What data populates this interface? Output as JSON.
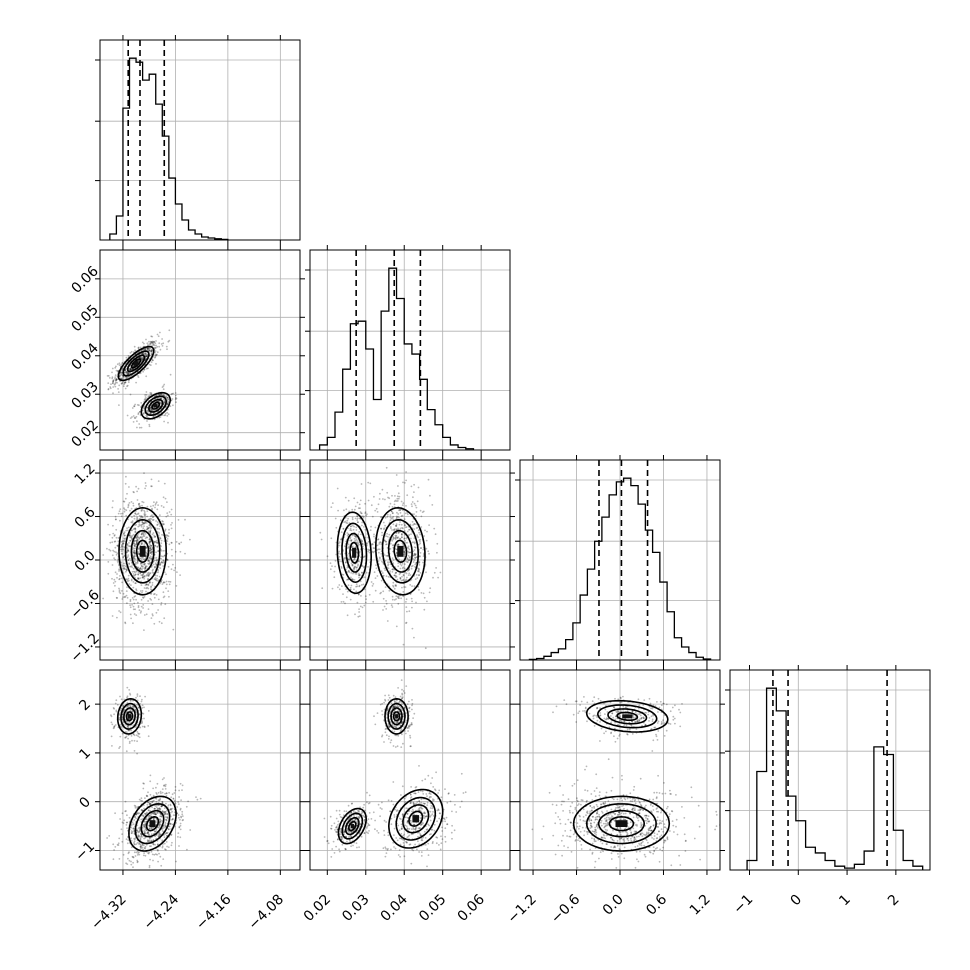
{
  "chart_data": {
    "type": "corner",
    "parameters": 4,
    "grid": true,
    "axes": {
      "x1": {
        "lim": [
          -4.355,
          -4.05
        ],
        "ticks": [
          -4.32,
          -4.24,
          -4.16,
          -4.08
        ],
        "tick_labels": [
          "−4.32",
          "−4.24",
          "−4.16",
          "−4.08"
        ]
      },
      "x2": {
        "lim": [
          0.0155,
          0.0675
        ],
        "ticks": [
          0.02,
          0.03,
          0.04,
          0.05,
          0.06
        ],
        "tick_labels": [
          "0.02",
          "0.03",
          "0.04",
          "0.05",
          "0.06"
        ]
      },
      "x3": {
        "lim": [
          -1.38,
          1.38
        ],
        "ticks": [
          -1.2,
          -0.6,
          0.0,
          0.6,
          1.2
        ],
        "tick_labels": [
          "−1.2",
          "−0.6",
          "0.0",
          "0.6",
          "1.2"
        ]
      },
      "x4": {
        "lim": [
          -1.4,
          2.7
        ],
        "ticks": [
          -1,
          0,
          1,
          2
        ],
        "tick_labels": [
          "−1",
          "0",
          "1",
          "2"
        ]
      }
    },
    "histograms": [
      {
        "param": "x1",
        "edges": [
          -4.34,
          -4.33,
          -4.32,
          -4.31,
          -4.3,
          -4.29,
          -4.28,
          -4.27,
          -4.26,
          -4.25,
          -4.24,
          -4.23,
          -4.22,
          -4.21,
          -4.2,
          -4.19,
          -4.18,
          -4.17,
          -4.16
        ],
        "counts": [
          3,
          12,
          66,
          91,
          89,
          80,
          83,
          68,
          52,
          31,
          18,
          10,
          5,
          3,
          1.5,
          1,
          0.6,
          0.3
        ],
        "quantiles": [
          -4.312,
          -4.294,
          -4.257
        ]
      },
      {
        "param": "x2",
        "edges": [
          0.018,
          0.02,
          0.022,
          0.024,
          0.026,
          0.028,
          0.03,
          0.032,
          0.034,
          0.036,
          0.038,
          0.04,
          0.042,
          0.044,
          0.046,
          0.048,
          0.05,
          0.052,
          0.054,
          0.056,
          0.058
        ],
        "counts": [
          2,
          5,
          15,
          32,
          50,
          51,
          40,
          20,
          55,
          72,
          60,
          42,
          38,
          28,
          16,
          10,
          5,
          2,
          1,
          0.5
        ],
        "quantiles": [
          0.0275,
          0.0374,
          0.0442
        ]
      },
      {
        "param": "x3",
        "edges": [
          -1.25,
          -1.15,
          -1.05,
          -0.95,
          -0.85,
          -0.75,
          -0.65,
          -0.55,
          -0.45,
          -0.35,
          -0.25,
          -0.15,
          -0.05,
          0.05,
          0.15,
          0.25,
          0.35,
          0.45,
          0.55,
          0.65,
          0.75,
          0.85,
          0.95,
          1.05,
          1.15,
          1.25
        ],
        "counts": [
          0.3,
          0.8,
          2,
          4,
          6,
          11,
          20,
          35,
          49,
          64,
          77,
          89,
          96,
          98,
          94,
          84,
          70,
          58,
          42,
          26,
          12,
          7,
          4,
          1.5,
          0.5
        ],
        "quantiles": [
          -0.29,
          0.02,
          0.38
        ]
      },
      {
        "param": "x4",
        "edges": [
          -1.05,
          -0.85,
          -0.65,
          -0.45,
          -0.25,
          -0.05,
          0.15,
          0.35,
          0.55,
          0.75,
          0.95,
          1.15,
          1.35,
          1.55,
          1.75,
          1.95,
          2.15,
          2.35,
          2.55
        ],
        "counts": [
          5,
          52,
          96,
          84,
          39,
          26,
          12,
          9,
          5,
          2,
          1,
          3,
          10,
          65,
          61,
          21,
          5,
          2
        ],
        "quantiles": [
          -0.52,
          -0.21,
          1.82
        ]
      }
    ],
    "pairs": [
      {
        "x": "x1",
        "y": "x2",
        "modes": [
          {
            "center": [
              -4.3,
              0.038
            ],
            "spread": [
              0.0135,
              0.0022
            ],
            "rho": 0.75,
            "weight": 0.62
          },
          {
            "center": [
              -4.27,
              0.027
            ],
            "spread": [
              0.011,
              0.0017
            ],
            "rho": 0.45,
            "weight": 0.38
          }
        ]
      },
      {
        "x": "x1",
        "y": "x3",
        "modes": [
          {
            "center": [
              -4.29,
              0.12
            ],
            "spread": [
              0.018,
              0.3
            ],
            "rho": 0.0,
            "weight": 1.0
          }
        ]
      },
      {
        "x": "x2",
        "y": "x3",
        "modes": [
          {
            "center": [
              0.027,
              0.1
            ],
            "spread": [
              0.0022,
              0.28
            ],
            "rho": -0.1,
            "weight": 0.38
          },
          {
            "center": [
              0.039,
              0.12
            ],
            "spread": [
              0.0032,
              0.3
            ],
            "rho": -0.1,
            "weight": 0.62
          }
        ]
      },
      {
        "x": "x1",
        "y": "x4",
        "modes": [
          {
            "center": [
              -4.31,
              1.75
            ],
            "spread": [
              0.009,
              0.18
            ],
            "rho": 0.1,
            "weight": 0.3
          },
          {
            "center": [
              -4.275,
              -0.45
            ],
            "spread": [
              0.018,
              0.28
            ],
            "rho": 0.35,
            "weight": 0.7
          }
        ]
      },
      {
        "x": "x2",
        "y": "x4",
        "modes": [
          {
            "center": [
              0.038,
              1.75
            ],
            "spread": [
              0.0015,
              0.18
            ],
            "rho": 0.0,
            "weight": 0.3
          },
          {
            "center": [
              0.0265,
              -0.5
            ],
            "spread": [
              0.0018,
              0.18
            ],
            "rho": 0.4,
            "weight": 0.32
          },
          {
            "center": [
              0.043,
              -0.35
            ],
            "spread": [
              0.0035,
              0.3
            ],
            "rho": 0.25,
            "weight": 0.38
          }
        ]
      },
      {
        "x": "x3",
        "y": "x4",
        "modes": [
          {
            "center": [
              0.1,
              1.75
            ],
            "spread": [
              0.28,
              0.16
            ],
            "rho": -0.2,
            "weight": 0.3
          },
          {
            "center": [
              0.02,
              -0.45
            ],
            "spread": [
              0.33,
              0.28
            ],
            "rho": 0.0,
            "weight": 0.7
          }
        ]
      }
    ]
  }
}
